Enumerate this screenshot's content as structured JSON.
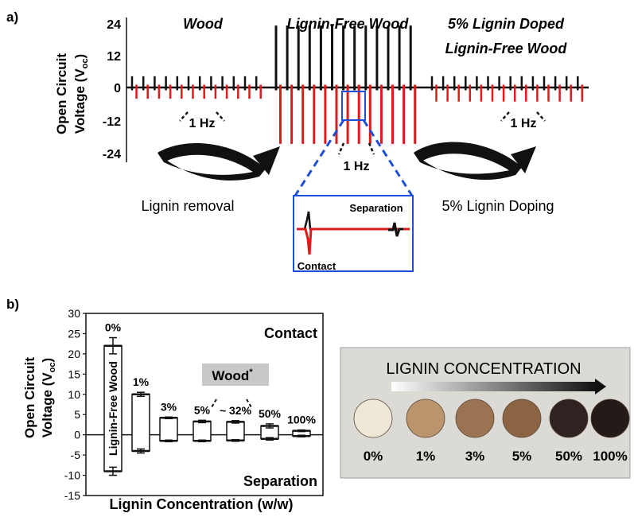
{
  "panel_a": {
    "label": "a)",
    "ylabel_main": "Open Circuit",
    "ylabel_sub": "Voltage (V",
    "ylabel_subscript": "oc",
    "ylabel_close": ")",
    "yticks": [
      "24",
      "12",
      "0",
      "-12",
      "-24"
    ],
    "sections": {
      "wood": "Wood",
      "lignin_free": "Lignin-Free Wood",
      "doped_line1": "5% Lignin Doped",
      "doped_line2": "Lignin-Free Wood"
    },
    "freq_label": "1 Hz",
    "arrow_left_label": "Lignin removal",
    "arrow_right_label": "5% Lignin Doping",
    "inset": {
      "separation": "Separation",
      "contact": "Contact"
    },
    "colors": {
      "contact": "#e0191b",
      "separation": "#111111",
      "inset_box": "#1f4fd8"
    }
  },
  "panel_b": {
    "label": "b)",
    "contact_label": "Contact",
    "separation_label": "Separation",
    "wood_badge": "Wood",
    "wood_badge_sup": "*",
    "bar0_inner_label": "Lignin-Free Wood",
    "approx_label": "~ 32%"
  },
  "photo": {
    "title": "LIGNIN CONCENTRATION",
    "samples": [
      {
        "label": "0%",
        "color": "#efe8d6"
      },
      {
        "label": "1%",
        "color": "#b9946c"
      },
      {
        "label": "3%",
        "color": "#9a7352"
      },
      {
        "label": "5%",
        "color": "#8c6444"
      },
      {
        "label": "50%",
        "color": "#2e2320"
      },
      {
        "label": "100%",
        "color": "#241a17"
      }
    ]
  },
  "chart_data": [
    {
      "type": "line",
      "title": "",
      "ylabel": "Open Circuit Voltage (Voc)",
      "ylim": [
        -24,
        24
      ],
      "yticks": [
        24,
        12,
        0,
        -12,
        -24
      ],
      "series": [
        {
          "name": "Wood",
          "contact_min": -4,
          "separation_max": 4,
          "frequency": "1 Hz"
        },
        {
          "name": "Lignin-Free Wood",
          "contact_min": -20,
          "separation_max": 22,
          "frequency": "1 Hz"
        },
        {
          "name": "5% Lignin Doped Lignin-Free Wood",
          "contact_min": -5,
          "separation_max": 4,
          "frequency": "1 Hz"
        }
      ]
    },
    {
      "type": "bar",
      "xlabel": "Lignin Concentration (w/w)",
      "ylabel": "Open Circuit Voltage (Voc)",
      "ylim": [
        -15,
        30
      ],
      "yticks": [
        -15,
        -10,
        -5,
        0,
        5,
        10,
        15,
        20,
        25,
        30
      ],
      "grid": false,
      "categories": [
        "0%",
        "1%",
        "3%",
        "5%",
        "~ 32%",
        "50%",
        "100%"
      ],
      "series": [
        {
          "name": "Contact",
          "values": [
            22.0,
            10.0,
            4.2,
            3.3,
            3.2,
            2.2,
            1.0
          ],
          "errors": [
            2.0,
            0.5,
            0.2,
            0.3,
            0.3,
            0.5,
            0.2
          ]
        },
        {
          "name": "Separation",
          "values": [
            -9.0,
            -4.0,
            -1.5,
            -1.5,
            -1.4,
            -1.0,
            -0.3
          ],
          "errors": [
            1.0,
            0.5,
            0.2,
            0.2,
            0.2,
            0.3,
            0.2
          ]
        }
      ]
    }
  ]
}
